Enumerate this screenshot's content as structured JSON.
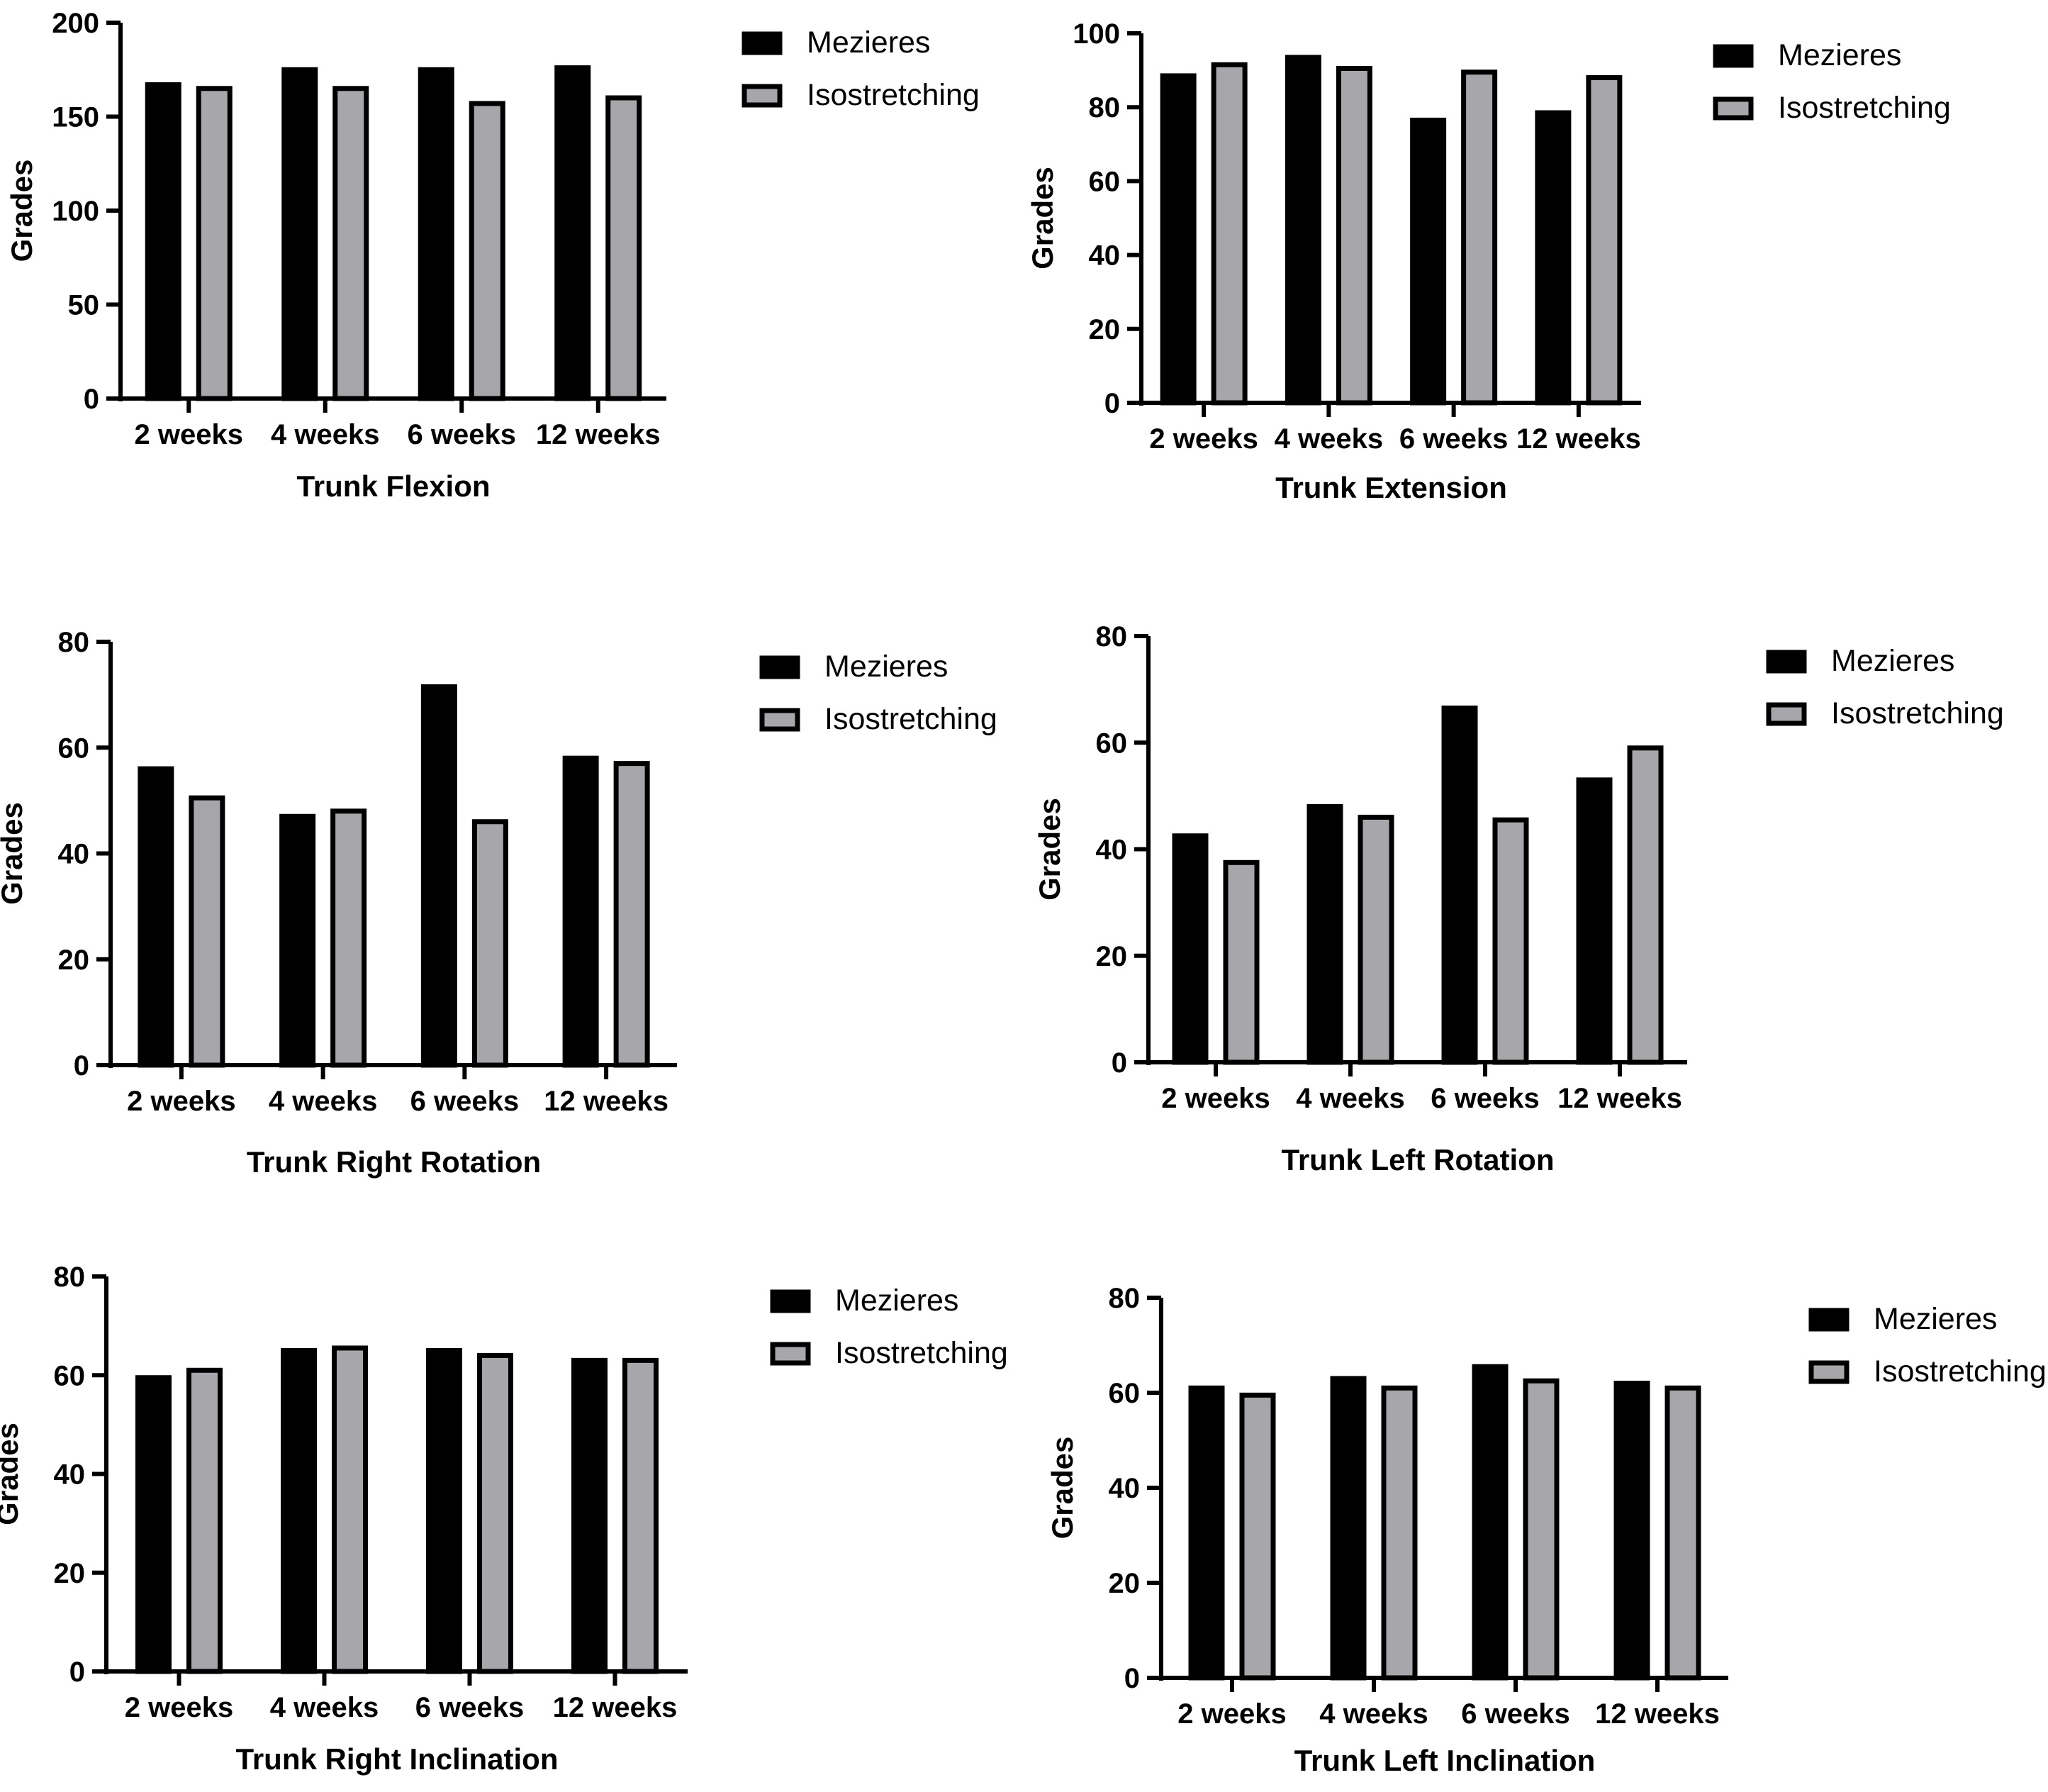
{
  "figure": {
    "colors": {
      "mezieres": "#000000",
      "isostretching": "#a7a7ab",
      "axis": "#000000"
    }
  },
  "chart_data": [
    {
      "type": "bar",
      "title": "Trunk Flexion",
      "ylabel": "Grades",
      "xlabel": "",
      "categories": [
        "2 weeks",
        "4 weeks",
        "6 weeks",
        "12 weeks"
      ],
      "ylim": [
        0,
        200
      ],
      "yticks": [
        0,
        50,
        100,
        150,
        200
      ],
      "legend": [
        "Mezieres",
        "Isostretching"
      ],
      "series": [
        {
          "name": "Mezieres",
          "values": [
            167,
            175,
            175,
            176
          ]
        },
        {
          "name": "Isostretching",
          "values": [
            165,
            165,
            157,
            160
          ]
        }
      ]
    },
    {
      "type": "bar",
      "title": "Trunk Extension",
      "ylabel": "Grades",
      "xlabel": "",
      "categories": [
        "2 weeks",
        "4 weeks",
        "6 weeks",
        "12 weeks"
      ],
      "ylim": [
        0,
        100
      ],
      "yticks": [
        0,
        20,
        40,
        60,
        80,
        100
      ],
      "legend": [
        "Mezieres",
        "Isostretching"
      ],
      "series": [
        {
          "name": "Mezieres",
          "values": [
            88.5,
            93.5,
            76.5,
            78.5
          ]
        },
        {
          "name": "Isostretching",
          "values": [
            91.5,
            90.5,
            89.5,
            88
          ]
        }
      ]
    },
    {
      "type": "bar",
      "title": "Trunk Right Rotation",
      "ylabel": "Grades",
      "xlabel": "",
      "categories": [
        "2 weeks",
        "4 weeks",
        "6 weeks",
        "12 weeks"
      ],
      "ylim": [
        0,
        80
      ],
      "yticks": [
        0,
        20,
        40,
        60,
        80
      ],
      "legend": [
        "Mezieres",
        "Isostretching"
      ],
      "series": [
        {
          "name": "Mezieres",
          "values": [
            56,
            47,
            71.5,
            58
          ]
        },
        {
          "name": "Isostretching",
          "values": [
            50.5,
            48,
            46,
            57
          ]
        }
      ]
    },
    {
      "type": "bar",
      "title": "Trunk Left Rotation",
      "ylabel": "Grades",
      "xlabel": "",
      "categories": [
        "2 weeks",
        "4 weeks",
        "6 weeks",
        "12 weeks"
      ],
      "ylim": [
        0,
        80
      ],
      "yticks": [
        0,
        20,
        40,
        60,
        80
      ],
      "legend": [
        "Mezieres",
        "Isostretching"
      ],
      "series": [
        {
          "name": "Mezieres",
          "values": [
            42.5,
            48,
            66.5,
            53
          ]
        },
        {
          "name": "Isostretching",
          "values": [
            37.5,
            46,
            45.5,
            59
          ]
        }
      ]
    },
    {
      "type": "bar",
      "title": "Trunk Right Inclination",
      "ylabel": "Grades",
      "xlabel": "",
      "categories": [
        "2 weeks",
        "4 weeks",
        "6 weeks",
        "12 weeks"
      ],
      "ylim": [
        0,
        80
      ],
      "yticks": [
        0,
        20,
        40,
        60,
        80
      ],
      "legend": [
        "Mezieres",
        "Isostretching"
      ],
      "series": [
        {
          "name": "Mezieres",
          "values": [
            59.5,
            65,
            65,
            63
          ]
        },
        {
          "name": "Isostretching",
          "values": [
            61,
            65.5,
            64,
            63
          ]
        }
      ]
    },
    {
      "type": "bar",
      "title": "Trunk Left Inclination",
      "ylabel": "Grades",
      "xlabel": "",
      "categories": [
        "2 weeks",
        "4 weeks",
        "6 weeks",
        "12 weeks"
      ],
      "ylim": [
        0,
        80
      ],
      "yticks": [
        0,
        20,
        40,
        60,
        80
      ],
      "legend": [
        "Mezieres",
        "Isostretching"
      ],
      "series": [
        {
          "name": "Mezieres",
          "values": [
            61,
            63,
            65.5,
            62
          ]
        },
        {
          "name": "Isostretching",
          "values": [
            59.5,
            61,
            62.5,
            61
          ]
        }
      ]
    }
  ]
}
